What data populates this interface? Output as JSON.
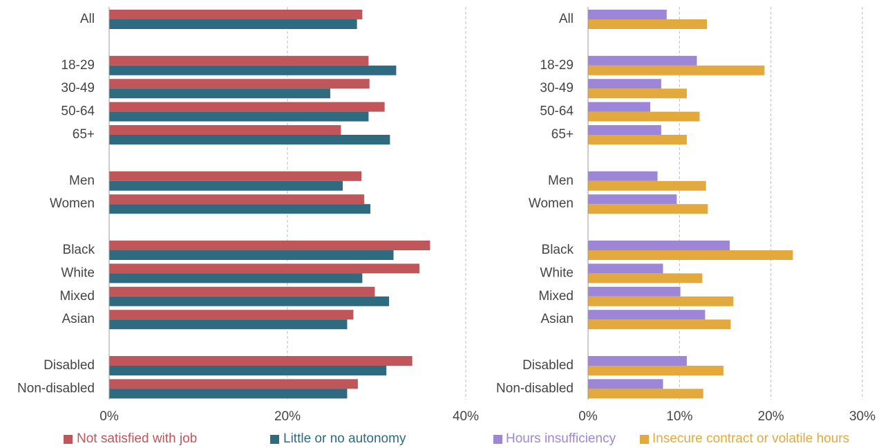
{
  "chart_data": [
    {
      "type": "bar",
      "orientation": "horizontal",
      "categories": [
        "All",
        null,
        "18-29",
        "30-49",
        "50-64",
        "65+",
        null,
        "Men",
        "Women",
        null,
        "Black",
        "White",
        "Mixed",
        "Asian",
        null,
        "Disabled",
        "Non-disabled"
      ],
      "series": [
        {
          "name": "Not satisfied with job",
          "color": "#c0555a",
          "values": [
            28.4,
            null,
            29.1,
            29.2,
            30.9,
            26.0,
            null,
            28.3,
            28.6,
            null,
            36.0,
            34.8,
            29.8,
            27.4,
            null,
            34.0,
            27.9
          ]
        },
        {
          "name": "Little or no autonomy",
          "color": "#2e6a80",
          "values": [
            27.8,
            null,
            32.2,
            24.8,
            29.1,
            31.5,
            null,
            26.2,
            29.3,
            null,
            31.9,
            28.4,
            31.4,
            26.7,
            null,
            31.1,
            26.7
          ]
        }
      ],
      "xlim": [
        0,
        40
      ],
      "xticks": [
        {
          "value": 0,
          "label": "0%"
        },
        {
          "value": 20,
          "label": "20%"
        },
        {
          "value": 40,
          "label": "40%"
        }
      ],
      "grid": true,
      "legend": "bottom"
    },
    {
      "type": "bar",
      "orientation": "horizontal",
      "categories": [
        "All",
        null,
        "18-29",
        "30-49",
        "50-64",
        "65+",
        null,
        "Men",
        "Women",
        null,
        "Black",
        "White",
        "Mixed",
        "Asian",
        null,
        "Disabled",
        "Non-disabled"
      ],
      "series": [
        {
          "name": "Hours insufficiency",
          "color": "#9d86d8",
          "values": [
            8.6,
            null,
            11.9,
            8.0,
            6.8,
            8.0,
            null,
            7.6,
            9.7,
            null,
            15.5,
            8.2,
            10.1,
            12.8,
            null,
            10.8,
            8.2
          ]
        },
        {
          "name": "Insecure contract or volatile hours",
          "color": "#e3a93c",
          "values": [
            13.0,
            null,
            19.3,
            10.8,
            12.2,
            10.8,
            null,
            12.9,
            13.1,
            null,
            22.4,
            12.5,
            15.9,
            15.6,
            null,
            14.8,
            12.6
          ]
        }
      ],
      "xlim": [
        0,
        30
      ],
      "xticks": [
        {
          "value": 0,
          "label": "0%"
        },
        {
          "value": 10,
          "label": "10%"
        },
        {
          "value": 20,
          "label": "20%"
        },
        {
          "value": 30,
          "label": "30%"
        }
      ],
      "grid": true,
      "legend": "bottom"
    }
  ]
}
